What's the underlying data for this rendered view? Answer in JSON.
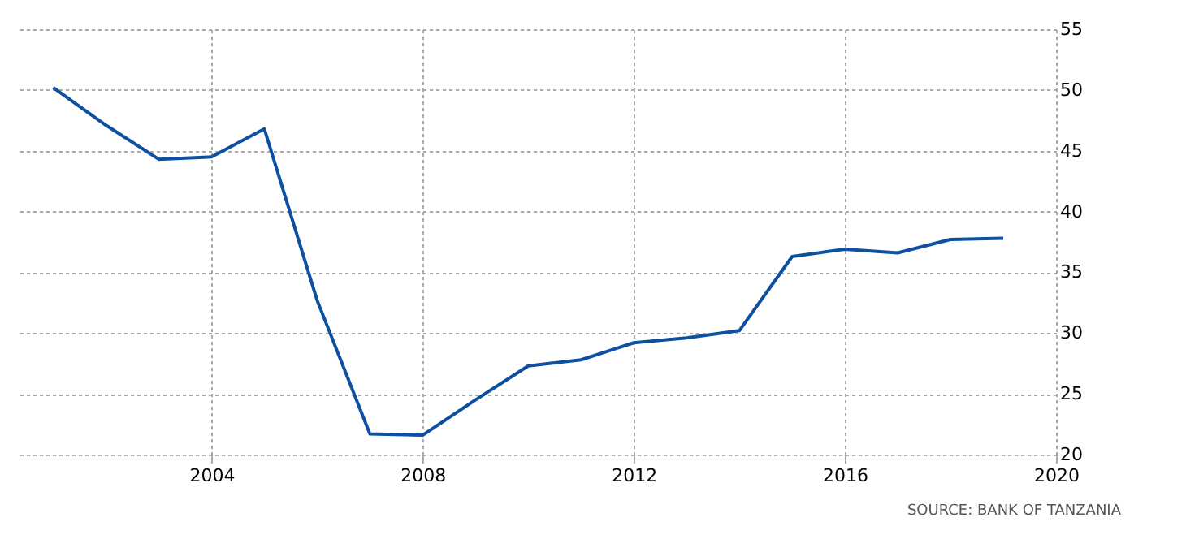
{
  "chart_data": {
    "type": "line",
    "x": [
      2001,
      2002,
      2003,
      2004,
      2005,
      2006,
      2007,
      2008,
      2009,
      2010,
      2011,
      2012,
      2013,
      2014,
      2015,
      2016,
      2017,
      2018,
      2019
    ],
    "series": [
      {
        "color": "#0d4fa0",
        "values": [
          50.2,
          47.1,
          44.3,
          44.5,
          46.8,
          32.7,
          21.7,
          21.6,
          24.5,
          27.3,
          27.8,
          29.2,
          29.6,
          30.2,
          36.3,
          36.9,
          36.6,
          37.7,
          37.8
        ]
      }
    ],
    "xlim": [
      2000.3,
      2020
    ],
    "xticks": [
      2004,
      2008,
      2012,
      2016,
      2020
    ],
    "ylim": [
      20,
      55
    ],
    "yticks": [
      20,
      25,
      30,
      35,
      40,
      45,
      50,
      55
    ],
    "grid": true,
    "legend": false,
    "marker": "none",
    "line_style": "solid",
    "annotations": [
      "SOURCE: BANK OF TANZANIA"
    ]
  }
}
